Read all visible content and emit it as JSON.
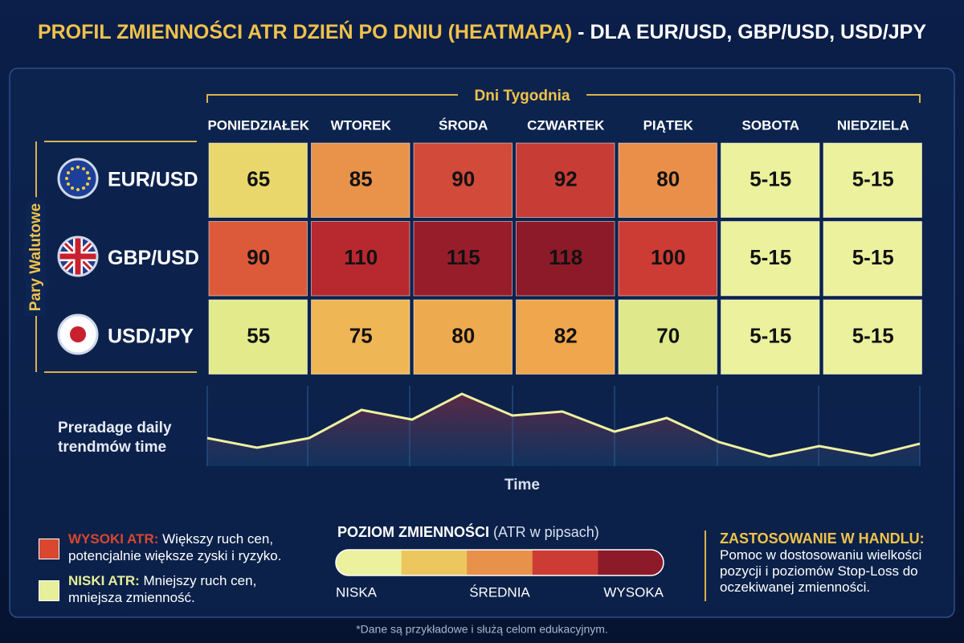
{
  "title": {
    "main": "PROFIL ZMIENNOŚCI ATR DZIEŃ PO DNIU (HEATMAPA)",
    "suffix": "- DLA EUR/USD, GBP/USD, USD/JPY"
  },
  "heatmap": {
    "column_header": "Dni Tygodnia",
    "row_header": "Pary Walutowe",
    "columns": [
      "PONIEDZIAŁEK",
      "WTOREK",
      "ŚRODA",
      "CZWARTEK",
      "PIĄTEK",
      "SOBOTA",
      "NIEDZIELA"
    ],
    "rows": [
      {
        "label": "EUR/USD",
        "cells": [
          {
            "text": 65,
            "color": "#e9d76c"
          },
          {
            "text": 85,
            "color": "#e9924a"
          },
          {
            "text": 90,
            "color": "#d24a39"
          },
          {
            "text": 92,
            "color": "#c83c36"
          },
          {
            "text": 80,
            "color": "#e98f4a"
          },
          {
            "text": "5-15",
            "color": "#ebf19c"
          },
          {
            "text": "5-15",
            "color": "#ebf19c"
          }
        ]
      },
      {
        "label": "GBP/USD",
        "cells": [
          {
            "text": 90,
            "color": "#dc5a3a"
          },
          {
            "text": 110,
            "color": "#b8282f"
          },
          {
            "text": 115,
            "color": "#971d2b"
          },
          {
            "text": 118,
            "color": "#8d1a28"
          },
          {
            "text": 100,
            "color": "#cc3b34"
          },
          {
            "text": "5-15",
            "color": "#ebf19c"
          },
          {
            "text": "5-15",
            "color": "#ebf19c"
          }
        ]
      },
      {
        "label": "USD/JPY",
        "cells": [
          {
            "text": 55,
            "color": "#e2ea8c"
          },
          {
            "text": 75,
            "color": "#efb655"
          },
          {
            "text": 80,
            "color": "#eeaa4e"
          },
          {
            "text": 82,
            "color": "#efa64c"
          },
          {
            "text": 70,
            "color": "#dfe98b"
          },
          {
            "text": "5-15",
            "color": "#ebf19c"
          },
          {
            "text": "5-15",
            "color": "#ebf19c"
          }
        ]
      }
    ]
  },
  "trend": {
    "label": "Preradage daily trendmów time",
    "axis_label": "Time"
  },
  "notes": {
    "high": {
      "label": "WYSOKI ATR:",
      "text": "Większy ruch cen, potencjalnie większe zyski i ryzyko.",
      "color": "#d9472f"
    },
    "low": {
      "label": "NISKI ATR:",
      "text": "Mniejszy ruch cen, mniejsza zmienność.",
      "color": "#e6ef9a"
    }
  },
  "scale": {
    "title": "POZIOM ZMIENNOŚCI",
    "unit": "(ATR w pipsach)",
    "colors": [
      "#ebf19c",
      "#ecc75e",
      "#e8914a",
      "#cc3b34",
      "#8d1a28"
    ],
    "labels": [
      "NISKA",
      "ŚREDNIA",
      "WYSOKA"
    ]
  },
  "usage": {
    "title": "ZASTOSOWANIE W HANDLU:",
    "text": "Pomoc w dostosowaniu wielkości pozycji i poziomów Stop-Loss do oczekiwanej zmienności."
  },
  "footnote": "*Dane są przykładowe i służą celom edukacyjnym."
}
